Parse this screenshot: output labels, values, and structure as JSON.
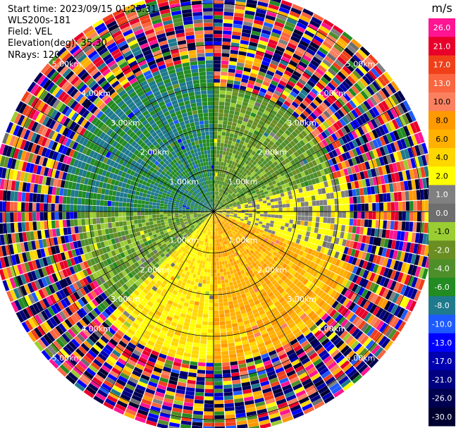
{
  "header": {
    "start_time": "Start time: 2023/09/15 01:25:31",
    "instrument": "WLS200s-181",
    "field": "Field: VEL",
    "elevation": "Elevation(deg): 35.30",
    "nrays": "NRays: 120"
  },
  "colorbar": {
    "unit": "m/s",
    "ticks": [
      {
        "label": "26.0",
        "value": 26,
        "color": "#ff1493"
      },
      {
        "label": "21.0",
        "value": 21,
        "color": "#e8002a"
      },
      {
        "label": "17.0",
        "value": 17,
        "color": "#f0401a"
      },
      {
        "label": "13.0",
        "value": 13,
        "color": "#fa6640"
      },
      {
        "label": "10.0",
        "value": 10,
        "color": "#fa8060"
      },
      {
        "label": "8.0",
        "value": 8,
        "color": "#ff9900"
      },
      {
        "label": "6.0",
        "value": 6,
        "color": "#ffb000"
      },
      {
        "label": "4.0",
        "value": 4,
        "color": "#ffd700"
      },
      {
        "label": "2.0",
        "value": 2,
        "color": "#ffff00"
      },
      {
        "label": "1.0",
        "value": 1,
        "color": "#808080"
      },
      {
        "label": "0.0",
        "value": 0,
        "color": "#6e6e6e"
      },
      {
        "label": "-1.0",
        "value": -1,
        "color": "#9acd32"
      },
      {
        "label": "-2.0",
        "value": -2,
        "color": "#6b8e23"
      },
      {
        "label": "-4.0",
        "value": -4,
        "color": "#4f8f2a"
      },
      {
        "label": "-6.0",
        "value": -6,
        "color": "#228b22"
      },
      {
        "label": "-8.0",
        "value": -8,
        "color": "#1e7a8c"
      },
      {
        "label": "-10.0",
        "value": -10,
        "color": "#1e5aff"
      },
      {
        "label": "-13.0",
        "value": -13,
        "color": "#0000ff"
      },
      {
        "label": "-17.0",
        "value": -17,
        "color": "#0000b0"
      },
      {
        "label": "-21.0",
        "value": -21,
        "color": "#000080"
      },
      {
        "label": "-26.0",
        "value": -26,
        "color": "#000050"
      },
      {
        "label": "-30.0",
        "value": -30,
        "color": "#000030"
      }
    ]
  },
  "chart_data": {
    "type": "heatmap",
    "title": "",
    "nrays": 120,
    "range_rings_km": [
      1,
      2,
      3,
      4,
      5
    ],
    "ring_labels": [
      "1.00km",
      "2.00km",
      "3.00km",
      "4.00km",
      "5.00km"
    ],
    "max_range_km": 5.3,
    "field": "VEL",
    "unit": "m/s",
    "vmin": -30,
    "vmax": 30,
    "regions": [
      {
        "name": "north-west",
        "azimuth_deg": [
          270,
          360
        ],
        "range_km": [
          0,
          3.6
        ],
        "velocity_ms": -6.0
      },
      {
        "name": "north-east",
        "azimuth_deg": [
          0,
          75
        ],
        "range_km": [
          0,
          3.0
        ],
        "velocity_ms": -2.0
      },
      {
        "name": "east",
        "azimuth_deg": [
          75,
          110
        ],
        "range_km": [
          0,
          3.2
        ],
        "velocity_ms": 2.5
      },
      {
        "name": "south-east",
        "azimuth_deg": [
          110,
          180
        ],
        "range_km": [
          0,
          3.6
        ],
        "velocity_ms": 7.0
      },
      {
        "name": "south",
        "azimuth_deg": [
          180,
          225
        ],
        "range_km": [
          0,
          3.6
        ],
        "velocity_ms": 4.0
      },
      {
        "name": "west",
        "azimuth_deg": [
          225,
          270
        ],
        "range_km": [
          0,
          3.2
        ],
        "velocity_ms": -1.5
      }
    ],
    "outer_noise_range_km": [
      3.6,
      5.3
    ]
  }
}
